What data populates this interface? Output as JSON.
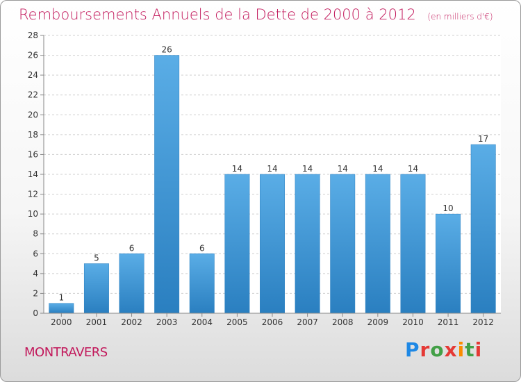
{
  "title": "Remboursements Annuels de la Dette de 2000 à 2012",
  "title_unit": "(en milliers d'€)",
  "city": "MONTRAVERS",
  "logo_text": "Proxiti",
  "colors": {
    "title": "#c2185b",
    "bar_light": "#5aade6",
    "bar_dark": "#2a7fc0"
  },
  "chart_data": {
    "type": "bar",
    "categories": [
      "2000",
      "2001",
      "2002",
      "2003",
      "2004",
      "2005",
      "2006",
      "2007",
      "2008",
      "2009",
      "2010",
      "2011",
      "2012"
    ],
    "values": [
      1,
      5,
      6,
      26,
      6,
      14,
      14,
      14,
      14,
      14,
      14,
      10,
      17
    ],
    "ylim": [
      0,
      28
    ],
    "yticks": [
      0,
      2,
      4,
      6,
      8,
      10,
      12,
      14,
      16,
      18,
      20,
      22,
      24,
      26,
      28
    ],
    "grid": true
  }
}
